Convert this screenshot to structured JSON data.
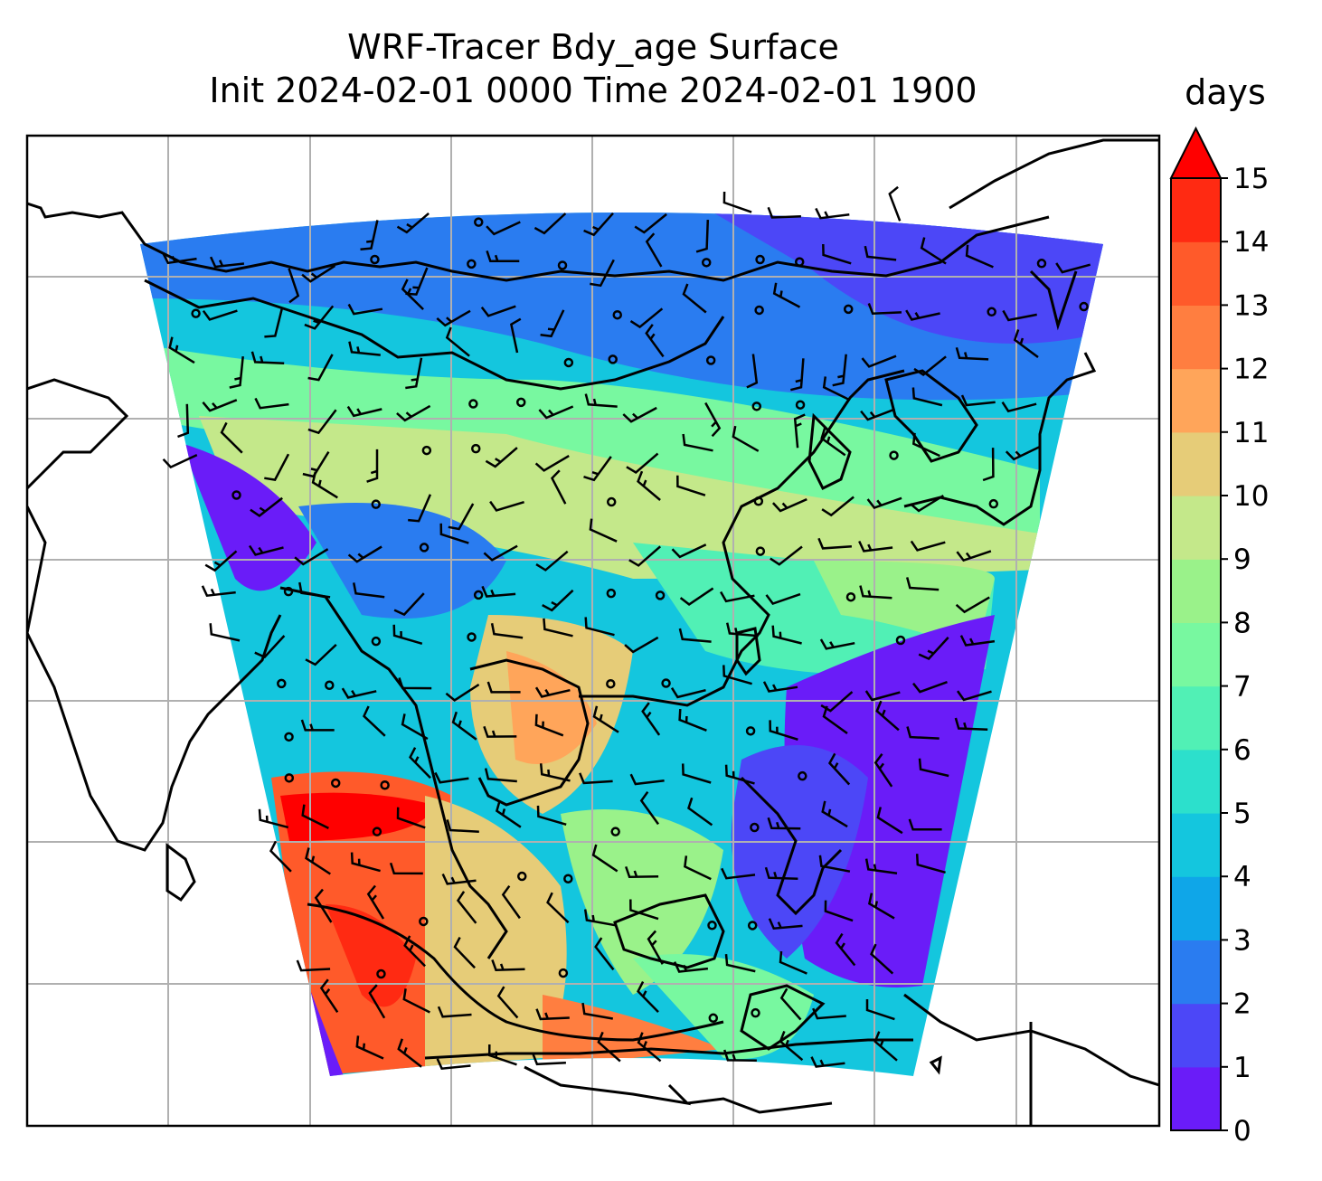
{
  "title_line1": "WRF-Tracer Bdy_age Surface",
  "title_line2": "Init 2024-02-01 0000 Time 2024-02-01 1900",
  "colorbar": {
    "unit": "days",
    "ticks": [
      "0",
      "1",
      "2",
      "3",
      "4",
      "5",
      "6",
      "7",
      "8",
      "9",
      "10",
      "11",
      "12",
      "13",
      "14",
      "15"
    ],
    "colors": [
      "#6a1cf8",
      "#4c47f7",
      "#2a7cf0",
      "#0fa6e8",
      "#14c6de",
      "#2ce0cc",
      "#51f0b5",
      "#78f8a0",
      "#9af28a",
      "#c4e88a",
      "#e6cc78",
      "#ffa55a",
      "#ff7e40",
      "#ff5a2a",
      "#ff2a12",
      "#ff0000"
    ],
    "extend": "max"
  },
  "map": {
    "gridlines": true,
    "wind_barbs": true,
    "coastlines": true
  }
}
